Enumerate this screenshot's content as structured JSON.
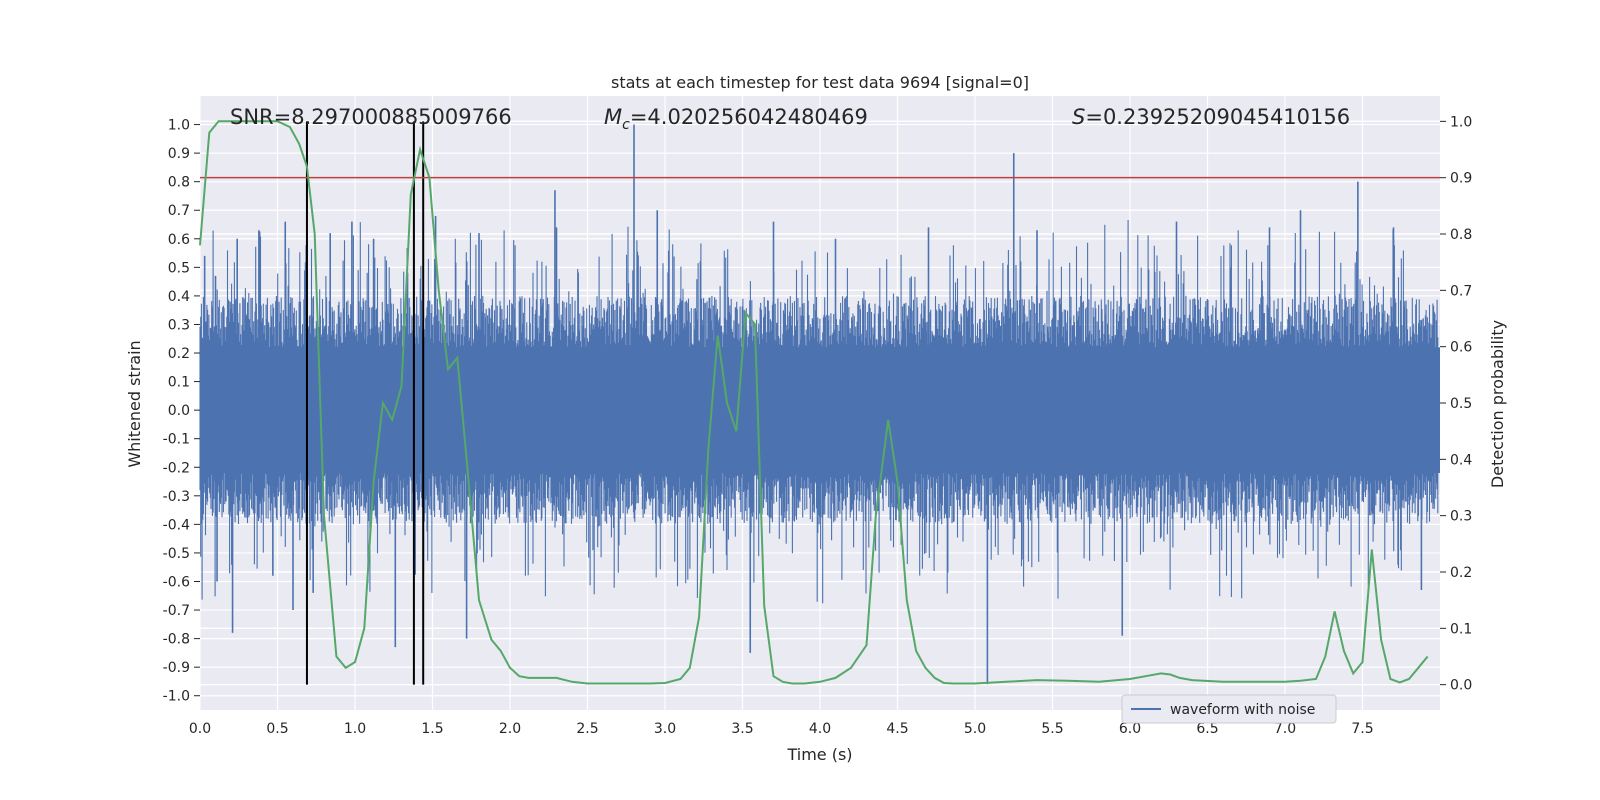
{
  "chart_data": {
    "type": "line",
    "title": "stats at each timestep for test data 9694 [signal=0]",
    "xlabel": "Time (s)",
    "ylabel": "Whitened strain",
    "y2label": "Detection probability",
    "xlim": [
      0,
      8
    ],
    "ylim": [
      -1.05,
      1.1
    ],
    "y2lim": [
      -0.045,
      1.045
    ],
    "xticks": [
      "0.0",
      "0.5",
      "1.0",
      "1.5",
      "2.0",
      "2.5",
      "3.0",
      "3.5",
      "4.0",
      "4.5",
      "5.0",
      "5.5",
      "6.0",
      "6.5",
      "7.0",
      "7.5"
    ],
    "yticks": [
      "-1.0",
      "-0.9",
      "-0.8",
      "-0.7",
      "-0.6",
      "-0.5",
      "-0.4",
      "-0.3",
      "-0.2",
      "-0.1",
      "0.0",
      "0.1",
      "0.2",
      "0.3",
      "0.4",
      "0.5",
      "0.6",
      "0.7",
      "0.8",
      "0.9",
      "1.0"
    ],
    "y2ticks": [
      "0.0",
      "0.1",
      "0.2",
      "0.3",
      "0.4",
      "0.5",
      "0.6",
      "0.7",
      "0.8",
      "0.9",
      "1.0"
    ],
    "grid": true,
    "annotations": {
      "snr": "SNR=8.297000885009766",
      "mc_symbol": "M",
      "mc_sub": "c",
      "mc_value": "=4.020256042480469",
      "s_symbol": "S",
      "s_value": "=0.23925209045410156"
    },
    "threshold": {
      "y2": 0.9,
      "color": "#c03d3e"
    },
    "vertical_lines": {
      "x": [
        0.69,
        1.38,
        1.44
      ],
      "color": "#000000"
    },
    "legend": {
      "position": "lower-right",
      "entries": [
        "waveform with noise"
      ]
    },
    "series": [
      {
        "name": "waveform with noise",
        "axis": "left",
        "color": "#4c72b0",
        "envelope": 0.4,
        "spikes": [
          {
            "x": 0.03,
            "y": 0.54
          },
          {
            "x": 0.1,
            "y": 0.47
          },
          {
            "x": 0.11,
            "y": -0.6
          },
          {
            "x": 0.21,
            "y": -0.78
          },
          {
            "x": 0.24,
            "y": 0.6
          },
          {
            "x": 0.38,
            "y": 0.63
          },
          {
            "x": 0.47,
            "y": -0.58
          },
          {
            "x": 0.55,
            "y": 0.66
          },
          {
            "x": 0.6,
            "y": -0.7
          },
          {
            "x": 0.73,
            "y": -0.64
          },
          {
            "x": 0.84,
            "y": 0.62
          },
          {
            "x": 0.98,
            "y": 0.66
          },
          {
            "x": 1.12,
            "y": 0.6
          },
          {
            "x": 1.26,
            "y": -0.83
          },
          {
            "x": 1.52,
            "y": 0.68
          },
          {
            "x": 1.72,
            "y": -0.8
          },
          {
            "x": 1.8,
            "y": 0.62
          },
          {
            "x": 2.3,
            "y": 0.64
          },
          {
            "x": 2.29,
            "y": 0.77
          },
          {
            "x": 2.8,
            "y": 1.0
          },
          {
            "x": 2.95,
            "y": 0.7
          },
          {
            "x": 3.55,
            "y": -0.85
          },
          {
            "x": 3.7,
            "y": 0.66
          },
          {
            "x": 4.1,
            "y": 0.6
          },
          {
            "x": 4.7,
            "y": 0.64
          },
          {
            "x": 5.08,
            "y": -0.96
          },
          {
            "x": 5.25,
            "y": 0.9
          },
          {
            "x": 5.4,
            "y": 0.63
          },
          {
            "x": 5.95,
            "y": -0.79
          },
          {
            "x": 6.3,
            "y": 0.66
          },
          {
            "x": 6.9,
            "y": 0.64
          },
          {
            "x": 7.1,
            "y": 0.7
          },
          {
            "x": 7.47,
            "y": 0.8
          },
          {
            "x": 7.7,
            "y": 0.64
          },
          {
            "x": 7.88,
            "y": -0.63
          }
        ]
      },
      {
        "name": "",
        "axis": "right",
        "color": "#55a868",
        "x": [
          0.0,
          0.06,
          0.12,
          0.18,
          0.25,
          0.38,
          0.5,
          0.58,
          0.64,
          0.69,
          0.74,
          0.8,
          0.88,
          0.94,
          1.0,
          1.06,
          1.12,
          1.18,
          1.24,
          1.3,
          1.36,
          1.42,
          1.48,
          1.54,
          1.6,
          1.66,
          1.72,
          1.8,
          1.88,
          1.94,
          2.0,
          2.06,
          2.12,
          2.2,
          2.3,
          2.4,
          2.5,
          2.7,
          2.9,
          3.0,
          3.1,
          3.16,
          3.22,
          3.28,
          3.34,
          3.4,
          3.46,
          3.52,
          3.58,
          3.64,
          3.7,
          3.76,
          3.82,
          3.9,
          4.0,
          4.1,
          4.2,
          4.3,
          4.36,
          4.44,
          4.5,
          4.56,
          4.62,
          4.68,
          4.74,
          4.8,
          4.86,
          4.92,
          5.0,
          5.2,
          5.4,
          5.6,
          5.8,
          6.0,
          6.1,
          6.2,
          6.26,
          6.32,
          6.4,
          6.6,
          6.8,
          7.0,
          7.1,
          7.2,
          7.26,
          7.32,
          7.38,
          7.44,
          7.5,
          7.56,
          7.62,
          7.68,
          7.74,
          7.8,
          7.86,
          7.92
        ],
        "values": [
          0.78,
          0.98,
          1.0,
          1.0,
          1.0,
          1.0,
          1.0,
          0.99,
          0.96,
          0.92,
          0.8,
          0.3,
          0.05,
          0.03,
          0.04,
          0.1,
          0.36,
          0.5,
          0.47,
          0.53,
          0.87,
          0.95,
          0.9,
          0.7,
          0.56,
          0.58,
          0.4,
          0.15,
          0.08,
          0.06,
          0.03,
          0.015,
          0.012,
          0.012,
          0.012,
          0.005,
          0.002,
          0.002,
          0.002,
          0.003,
          0.01,
          0.03,
          0.12,
          0.42,
          0.62,
          0.5,
          0.45,
          0.66,
          0.64,
          0.14,
          0.015,
          0.005,
          0.002,
          0.002,
          0.005,
          0.012,
          0.03,
          0.07,
          0.3,
          0.47,
          0.36,
          0.15,
          0.06,
          0.03,
          0.012,
          0.003,
          0.002,
          0.002,
          0.002,
          0.005,
          0.008,
          0.007,
          0.005,
          0.01,
          0.015,
          0.02,
          0.018,
          0.012,
          0.008,
          0.005,
          0.005,
          0.005,
          0.007,
          0.01,
          0.05,
          0.13,
          0.06,
          0.02,
          0.04,
          0.24,
          0.08,
          0.01,
          0.004,
          0.01,
          0.03,
          0.05
        ]
      }
    ]
  }
}
